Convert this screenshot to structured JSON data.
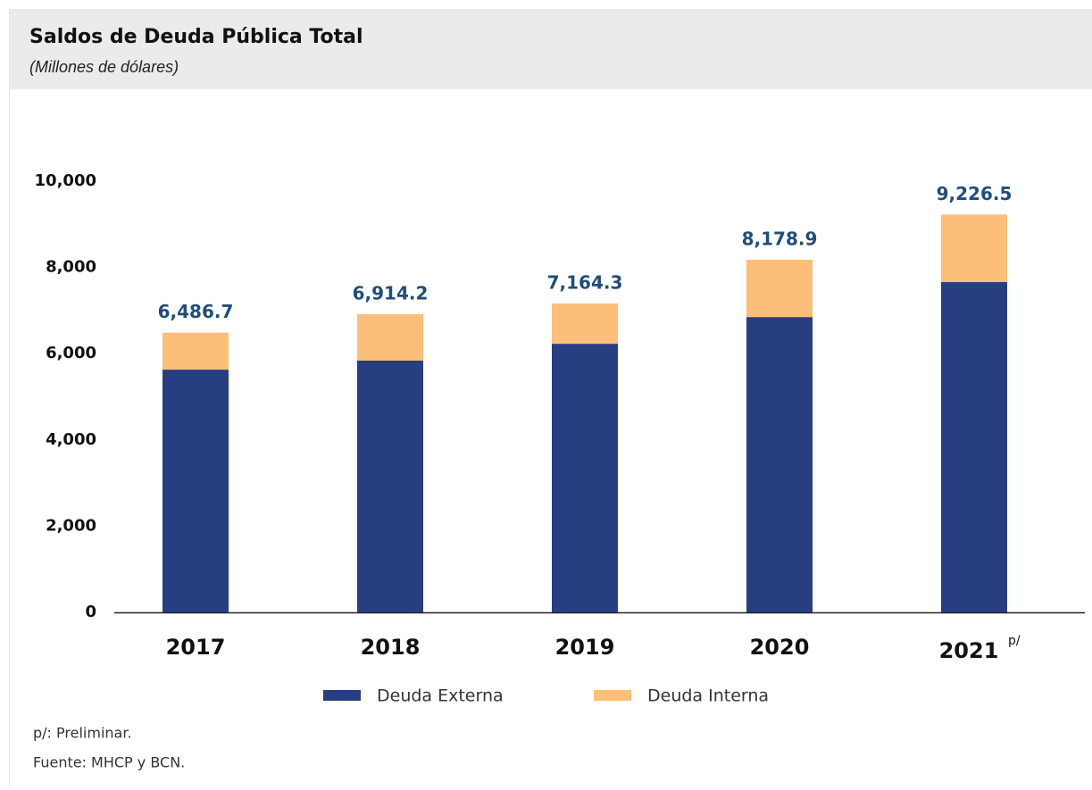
{
  "chart_data": {
    "type": "stacked-bar",
    "title": "Saldos de Deuda Pública Total",
    "subtitle": "(Millones de dólares)",
    "categories": [
      "2017",
      "2018",
      "2019",
      "2020",
      "2021"
    ],
    "category_note": "p/",
    "series": [
      {
        "name": "Deuda Externa",
        "color": "#273e80",
        "values": [
          5630,
          5840,
          6230,
          6850,
          7660
        ]
      },
      {
        "name": "Deuda Interna",
        "color": "#fbbf7a",
        "values": [
          856.7,
          1074.2,
          934.3,
          1328.9,
          1566.5
        ]
      }
    ],
    "totals": [
      6486.7,
      6914.2,
      7164.3,
      8178.9,
      9226.5
    ],
    "value_labels": [
      "6,486.7",
      "6,914.2",
      "7,164.3",
      "8,178.9",
      "9,226.5"
    ],
    "ylim": [
      0,
      10000
    ],
    "yticks": [
      0,
      {
        "value": 2000,
        "label": "2,000"
      },
      {
        "value": 4000,
        "label": "4,000"
      },
      {
        "value": 6000,
        "label": "6,000"
      },
      {
        "value": 8000,
        "label": "8,000"
      },
      {
        "value": 10000,
        "label": "10,000"
      }
    ],
    "notes": [
      "p/: Preliminar.",
      "Fuente: MHCP y BCN."
    ]
  }
}
